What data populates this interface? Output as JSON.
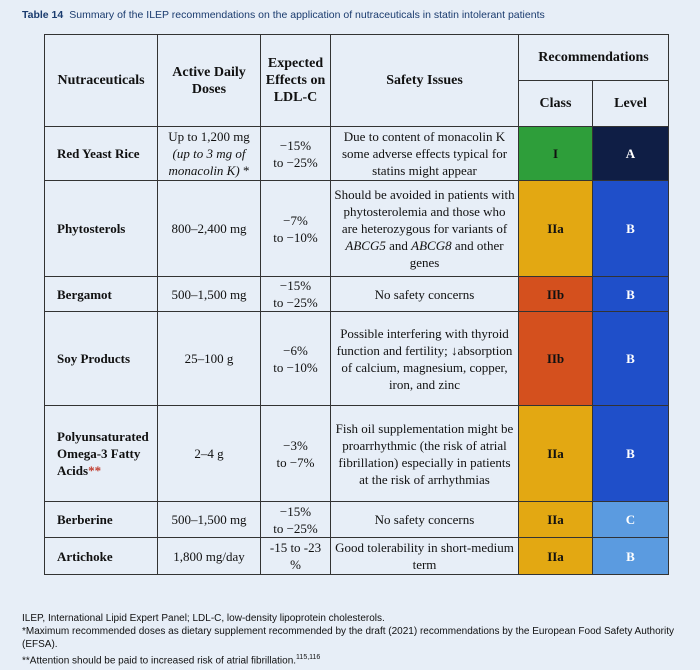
{
  "caption": {
    "label": "Table 14",
    "text": "Summary of the ILEP recommendations on the application of nutraceuticals in statin intolerant patients"
  },
  "headers": {
    "nutraceuticals": "Nutraceuticals",
    "doses": "Active Daily Doses",
    "effects": "Expected Effects on LDL-C",
    "safety": "Safety Issues",
    "recommendations": "Recommendations",
    "class": "Class",
    "level": "Level"
  },
  "rows": [
    {
      "name": "Red Yeast Rice",
      "dose_main": "Up to 1,200 mg",
      "dose_note": "(up to 3 mg of monacolin K)",
      "dose_mark": "*",
      "effect_a": "−15%",
      "effect_b": "to −25%",
      "safety": "Due to content of monacolin K some adverse effects typical for statins might appear",
      "class": "I",
      "level": "A",
      "class_color": "#2e9e3a",
      "level_color": "#0f1e45"
    },
    {
      "name": "Phytosterols",
      "dose_main": "800–2,400 mg",
      "effect_a": "−7%",
      "effect_b": "to −10%",
      "safety_1": "Should be avoided in patients with phytosterolemia and those who are heterozygous for variants of",
      "safety_gene1": "ABCG5",
      "safety_and": "and",
      "safety_gene2": "ABCG8",
      "safety_2": "and other genes",
      "class": "IIa",
      "level": "B",
      "class_color": "#e3a812",
      "level_color": "#1f4fc9"
    },
    {
      "name": "Bergamot",
      "dose_main": "500–1,500 mg",
      "effect_a": "−15%",
      "effect_b": "to −25%",
      "safety": "No safety concerns",
      "class": "IIb",
      "level": "B",
      "class_color": "#d4501e",
      "level_color": "#1f4fc9"
    },
    {
      "name": "Soy Products",
      "dose_main": "25–100 g",
      "effect_a": "−6%",
      "effect_b": "to −10%",
      "safety": "Possible interfering with thyroid function and fertility; ↓absorption of calcium, magnesium, copper, iron, and zinc",
      "class": "IIb",
      "level": "B",
      "class_color": "#d4501e",
      "level_color": "#1f4fc9"
    },
    {
      "name": "Polyunsaturated Omega-3 Fatty Acids",
      "name_mark": "**",
      "dose_main": "2–4 g",
      "effect_a": "−3%",
      "effect_b": "to −7%",
      "safety": "Fish oil supplementation might be proarrhythmic (the risk of atrial fibrillation) especially in patients at the risk of arrhythmias",
      "class": "IIa",
      "level": "B",
      "class_color": "#e3a812",
      "level_color": "#1f4fc9"
    },
    {
      "name": "Berberine",
      "dose_main": "500–1,500 mg",
      "effect_a": "−15%",
      "effect_b": "to −25%",
      "safety": "No safety concerns",
      "class": "IIa",
      "level": "C",
      "class_color": "#e3a812",
      "level_color": "#5b9be0"
    },
    {
      "name": "Artichoke",
      "dose_main": "1,800 mg/day",
      "effect_a": "-15 to -23",
      "effect_b": "%",
      "safety": "Good tolerability in short-medium term",
      "class": "IIa",
      "level": "B",
      "class_color": "#e3a812",
      "level_color": "#5b9be0"
    }
  ],
  "footnotes": {
    "abbrev": "ILEP, International Lipid Expert Panel; LDL-C, low-density lipoprotein cholesterols.",
    "note1": "*Maximum recommended doses as dietary supplement recommended by the draft (2021) recommendations by the European Food Safety Authority (EFSA).",
    "note2": "**Attention should be paid to increased risk of atrial fibrillation.",
    "note2_refs": "115,116"
  }
}
